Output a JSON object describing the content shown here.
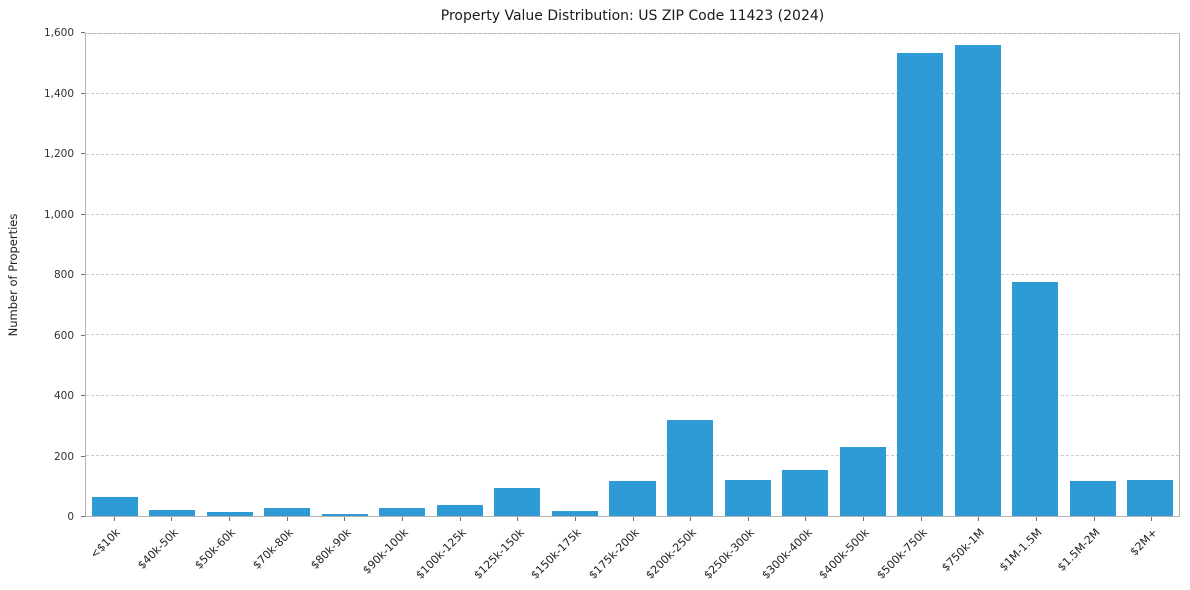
{
  "chart_data": {
    "type": "bar",
    "title": "Property Value Distribution: US ZIP Code 11423 (2024)",
    "xlabel": "",
    "ylabel": "Number of Properties",
    "categories": [
      "<$10k",
      "$40k-50k",
      "$50k-60k",
      "$70k-80k",
      "$80k-90k",
      "$90k-100k",
      "$100k-125k",
      "$125k-150k",
      "$150k-175k",
      "$175k-200k",
      "$200k-250k",
      "$250k-300k",
      "$300k-400k",
      "$400k-500k",
      "$500k-750k",
      "$750k-1M",
      "$1M-1.5M",
      "$1.5M-2M",
      "$2M+"
    ],
    "values": [
      62,
      20,
      13,
      28,
      7,
      27,
      37,
      94,
      17,
      115,
      318,
      121,
      152,
      229,
      1538,
      1565,
      778,
      115,
      118
    ],
    "ylim": [
      0,
      1600
    ],
    "yticks": [
      0,
      200,
      400,
      600,
      800,
      1000,
      1200,
      1400,
      1600
    ],
    "ytick_labels": [
      "0",
      "200",
      "400",
      "600",
      "800",
      "1,000",
      "1,200",
      "1,400",
      "1,600"
    ],
    "grid": "horizontal-dashed",
    "legend": "none",
    "bar_color": "#2E9BD6",
    "bar_width_fraction": 0.8
  }
}
